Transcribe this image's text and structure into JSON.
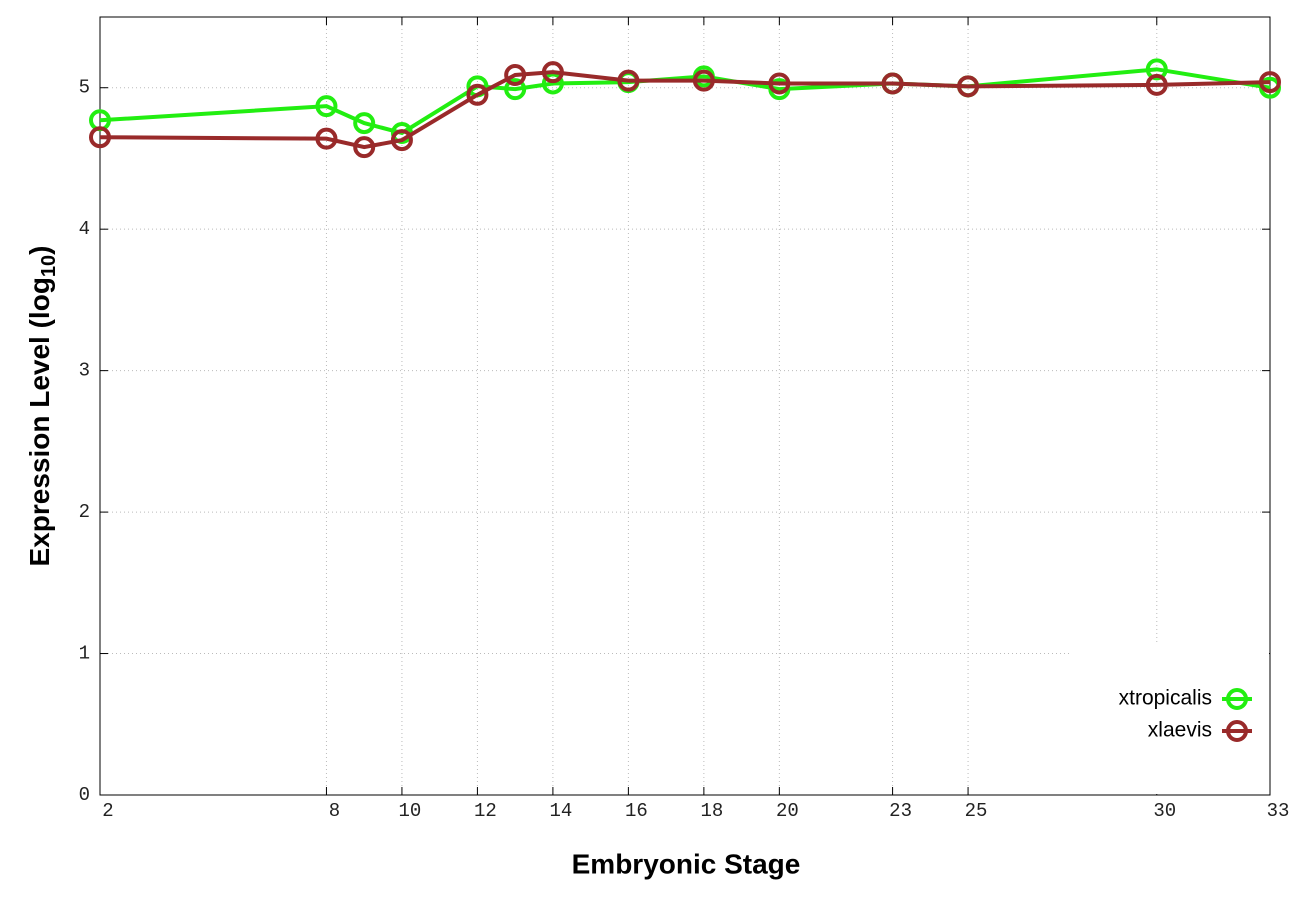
{
  "chart_data": {
    "type": "line",
    "x_label": "Embryonic Stage",
    "y_label": [
      "Expression Level (log",
      "10",
      ")"
    ],
    "x": [
      2,
      8,
      9,
      10,
      12,
      13,
      14,
      16,
      18,
      20,
      23,
      25,
      30,
      33
    ],
    "series": [
      {
        "name": "xtropicalis",
        "color": "#22ee11",
        "values": [
          4.77,
          4.87,
          4.75,
          4.68,
          5.01,
          4.99,
          5.03,
          5.04,
          5.08,
          4.99,
          5.03,
          5.01,
          5.13,
          5.0
        ]
      },
      {
        "name": "xlaevis",
        "color": "#992a2a",
        "values": [
          4.65,
          4.64,
          4.58,
          4.63,
          4.95,
          5.09,
          5.11,
          5.05,
          5.05,
          5.03,
          5.03,
          5.01,
          5.02,
          5.04
        ]
      }
    ],
    "xlim": [
      2,
      33
    ],
    "xticks": [
      2,
      8,
      10,
      12,
      14,
      16,
      18,
      20,
      23,
      25,
      30,
      33
    ],
    "ylim": [
      0,
      5.5
    ],
    "yticks": [
      0,
      1,
      2,
      3,
      4,
      5
    ],
    "grid": true,
    "legend": "bottom-right"
  }
}
